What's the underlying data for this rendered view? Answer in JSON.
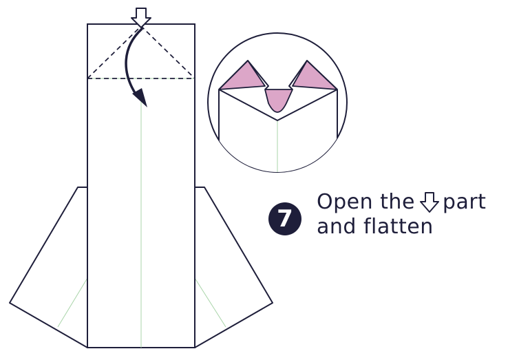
{
  "step": {
    "number": "7"
  },
  "instruction": {
    "line1_before": "Open the",
    "line1_after": "part",
    "line2": "and flatten",
    "inline_icon": "open-arrow-icon"
  },
  "colors": {
    "outline": "#1e1e3a",
    "pink_fill": "#dca6c8",
    "crease": "#a8d4a8",
    "badge_bg": "#1e1e3a",
    "badge_text": "#ffffff"
  }
}
